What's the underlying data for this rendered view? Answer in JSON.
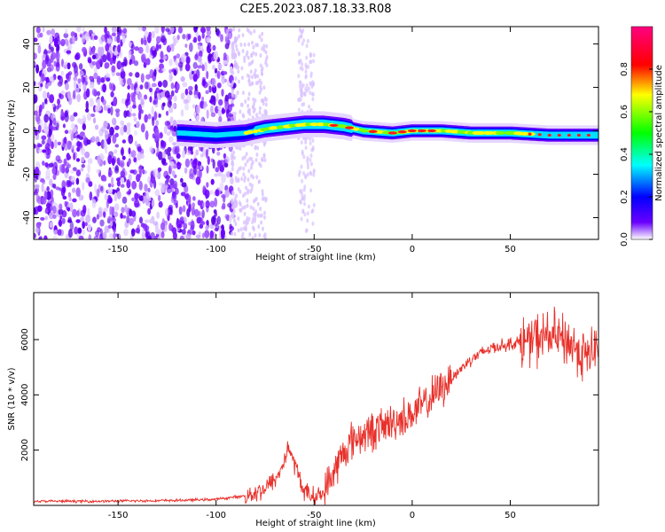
{
  "figure": {
    "title": "C2E5.2023.087.18.33.R08"
  },
  "chart_data": [
    {
      "type": "heatmap",
      "xlabel": "Height of straight line (km)",
      "ylabel": "Frequency (Hz)",
      "xlim": [
        -193,
        95
      ],
      "ylim": [
        -50,
        48
      ],
      "x_ticks": [
        -150,
        -100,
        -50,
        0,
        50
      ],
      "y_ticks": [
        -40,
        -20,
        0,
        20,
        40
      ],
      "ridge": [
        {
          "x": -118,
          "y": -1
        },
        {
          "x": -100,
          "y": -2
        },
        {
          "x": -85,
          "y": -1
        },
        {
          "x": -75,
          "y": 1
        },
        {
          "x": -65,
          "y": 2
        },
        {
          "x": -55,
          "y": 3
        },
        {
          "x": -45,
          "y": 3
        },
        {
          "x": -35,
          "y": 2
        },
        {
          "x": -25,
          "y": 0
        },
        {
          "x": -10,
          "y": -1
        },
        {
          "x": 0,
          "y": 0
        },
        {
          "x": 15,
          "y": 0
        },
        {
          "x": 30,
          "y": -1
        },
        {
          "x": 50,
          "y": -1
        },
        {
          "x": 70,
          "y": -2
        },
        {
          "x": 95,
          "y": -2
        }
      ],
      "colorbar": {
        "label": "Normalized spectral amplitude",
        "range": [
          0,
          1
        ],
        "ticks": [
          0.0,
          0.2,
          0.4,
          0.6,
          0.8
        ],
        "colors": [
          "#ffffff",
          "#6a00ff",
          "#0000ff",
          "#00ffff",
          "#00ff00",
          "#ffff00",
          "#ff0000",
          "#ff0080"
        ]
      }
    },
    {
      "type": "line",
      "xlabel": "Height of straight line (km)",
      "ylabel": "SNR (10 * v/v)",
      "xlim": [
        -193,
        95
      ],
      "ylim": [
        0,
        7700
      ],
      "x_ticks": [
        -150,
        -100,
        -50,
        0,
        50
      ],
      "y_ticks": [
        2000,
        4000,
        6000
      ],
      "color": "#e8302a",
      "series": [
        {
          "values": [
            {
              "x": -193,
              "y": 150
            },
            {
              "x": -160,
              "y": 150
            },
            {
              "x": -120,
              "y": 180
            },
            {
              "x": -100,
              "y": 220
            },
            {
              "x": -85,
              "y": 350
            },
            {
              "x": -75,
              "y": 600
            },
            {
              "x": -68,
              "y": 1100
            },
            {
              "x": -63,
              "y": 2100
            },
            {
              "x": -59,
              "y": 1300
            },
            {
              "x": -55,
              "y": 500
            },
            {
              "x": -50,
              "y": 300
            },
            {
              "x": -45,
              "y": 450
            },
            {
              "x": -40,
              "y": 1200
            },
            {
              "x": -35,
              "y": 1900
            },
            {
              "x": -30,
              "y": 2400
            },
            {
              "x": -20,
              "y": 2700
            },
            {
              "x": -10,
              "y": 3000
            },
            {
              "x": 0,
              "y": 3300
            },
            {
              "x": 10,
              "y": 3900
            },
            {
              "x": 20,
              "y": 4600
            },
            {
              "x": 30,
              "y": 5300
            },
            {
              "x": 40,
              "y": 5700
            },
            {
              "x": 50,
              "y": 5850
            },
            {
              "x": 60,
              "y": 5950
            },
            {
              "x": 70,
              "y": 6150
            },
            {
              "x": 80,
              "y": 5900
            },
            {
              "x": 88,
              "y": 5400
            },
            {
              "x": 95,
              "y": 5700
            }
          ]
        }
      ]
    }
  ]
}
